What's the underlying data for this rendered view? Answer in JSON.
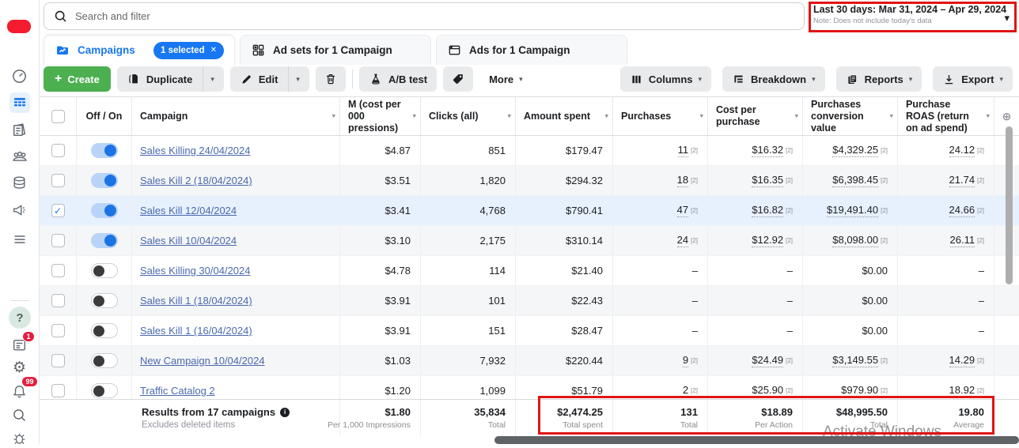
{
  "topbar": {
    "search_placeholder": "Search and filter",
    "date_range": {
      "label": "Last 30 days: Mar 31, 2024 – Apr 29, 2024",
      "note": "Note: Does not include today's data"
    }
  },
  "tabs": [
    {
      "label": "Campaigns",
      "badge": "1 selected"
    },
    {
      "label": "Ad sets for 1 Campaign"
    },
    {
      "label": "Ads for 1 Campaign"
    }
  ],
  "toolbar": {
    "create": "Create",
    "duplicate": "Duplicate",
    "edit": "Edit",
    "ab_test": "A/B test",
    "more": "More",
    "columns": "Columns",
    "breakdown": "Breakdown",
    "reports": "Reports",
    "export": "Export"
  },
  "table": {
    "headers": {
      "off_on": "Off / On",
      "campaign": "Campaign",
      "cpm": "M (cost per\n000\npressions)",
      "clicks": "Clicks (all)",
      "spent": "Amount spent",
      "purchases": "Purchases",
      "cost_per_purchase": "Cost per purchase",
      "conversion_value": "Purchases conversion value",
      "roas": "Purchase ROAS (return on ad spend)"
    },
    "rows": [
      {
        "name": "Sales Killing 24/04/2024",
        "on": true,
        "checked": false,
        "selected": false,
        "cpm": "$4.87",
        "clicks": "851",
        "spent": "$179.47",
        "purchases": [
          "11",
          "[2]"
        ],
        "cpp": [
          "$16.32",
          "[2]"
        ],
        "pcv": [
          "$4,329.25",
          "[2]"
        ],
        "roas": [
          "24.12",
          "[2]"
        ]
      },
      {
        "name": "Sales Kill 2 (18/04/2024)",
        "on": true,
        "checked": false,
        "selected": false,
        "cpm": "$3.51",
        "clicks": "1,820",
        "spent": "$294.32",
        "purchases": [
          "18",
          "[2]"
        ],
        "cpp": [
          "$16.35",
          "[2]"
        ],
        "pcv": [
          "$6,398.45",
          "[2]"
        ],
        "roas": [
          "21.74",
          "[2]"
        ]
      },
      {
        "name": "Sales Kill 12/04/2024",
        "on": true,
        "checked": true,
        "selected": true,
        "cpm": "$3.41",
        "clicks": "4,768",
        "spent": "$790.41",
        "purchases": [
          "47",
          "[2]"
        ],
        "cpp": [
          "$16.82",
          "[2]"
        ],
        "pcv": [
          "$19,491.40",
          "[2]"
        ],
        "roas": [
          "24.66",
          "[2]"
        ]
      },
      {
        "name": "Sales Kill 10/04/2024",
        "on": true,
        "checked": false,
        "selected": false,
        "cpm": "$3.10",
        "clicks": "2,175",
        "spent": "$310.14",
        "purchases": [
          "24",
          "[2]"
        ],
        "cpp": [
          "$12.92",
          "[2]"
        ],
        "pcv": [
          "$8,098.00",
          "[2]"
        ],
        "roas": [
          "26.11",
          "[2]"
        ]
      },
      {
        "name": "Sales Killing 30/04/2024",
        "on": false,
        "checked": false,
        "selected": false,
        "cpm": "$4.78",
        "clicks": "114",
        "spent": "$21.40",
        "purchases": [
          "–",
          ""
        ],
        "cpp": [
          "–",
          ""
        ],
        "pcv": [
          "$0.00",
          ""
        ],
        "roas": [
          "–",
          ""
        ]
      },
      {
        "name": "Sales Kill 1 (18/04/2024)",
        "on": false,
        "checked": false,
        "selected": false,
        "cpm": "$3.91",
        "clicks": "101",
        "spent": "$22.43",
        "purchases": [
          "–",
          ""
        ],
        "cpp": [
          "–",
          ""
        ],
        "pcv": [
          "$0.00",
          ""
        ],
        "roas": [
          "–",
          ""
        ]
      },
      {
        "name": "Sales Kill 1 (16/04/2024)",
        "on": false,
        "checked": false,
        "selected": false,
        "cpm": "$3.91",
        "clicks": "151",
        "spent": "$28.47",
        "purchases": [
          "–",
          ""
        ],
        "cpp": [
          "–",
          ""
        ],
        "pcv": [
          "$0.00",
          ""
        ],
        "roas": [
          "–",
          ""
        ]
      },
      {
        "name": "New Campaign 10/04/2024",
        "on": false,
        "checked": false,
        "selected": false,
        "cpm": "$1.03",
        "clicks": "7,932",
        "spent": "$220.44",
        "purchases": [
          "9",
          "[2]"
        ],
        "cpp": [
          "$24.49",
          "[2]"
        ],
        "pcv": [
          "$3,149.55",
          "[2]"
        ],
        "roas": [
          "14.29",
          "[2]"
        ]
      },
      {
        "name": "Traffic Catalog 2",
        "on": false,
        "checked": false,
        "selected": false,
        "cpm": "$1.20",
        "clicks": "1,099",
        "spent": "$51.79",
        "purchases": [
          "2",
          "[2]"
        ],
        "cpp": [
          "$25.90",
          "[2]"
        ],
        "pcv": [
          "$979.90",
          "[2]"
        ],
        "roas": [
          "18.92",
          "[2]"
        ]
      }
    ],
    "totals": {
      "title": "Results from 17 campaigns",
      "subtitle": "Excludes deleted items",
      "cpm": {
        "value": "$1.80",
        "label": "Per 1,000 Impressions"
      },
      "clicks": {
        "value": "35,834",
        "label": "Total"
      },
      "spent": {
        "value": "$2,474.25",
        "label": "Total spent"
      },
      "purchases": {
        "value": "131",
        "label": "Total"
      },
      "cost_per_purchase": {
        "value": "$18.89",
        "label": "Per Action"
      },
      "conversion_value": {
        "value": "$48,995.50",
        "label": "Total"
      },
      "roas": {
        "value": "19.80",
        "label": "Average"
      }
    }
  },
  "sidebar": {
    "updates_badge": "1",
    "notifications_badge": "99"
  },
  "icons": {
    "chevron_down": "▾",
    "close": "✕",
    "add_column": "⊕",
    "gear": "⚙",
    "check": "✓",
    "plus": "+",
    "help": "?",
    "info": "i"
  },
  "watermark": "Activate Windows",
  "colors": {
    "accent_blue": "#1877f2",
    "create_green": "#4caf50",
    "link_blue": "#4a69ad",
    "selected_row": "#e7f1fe",
    "annotation_red": "#e11414"
  }
}
